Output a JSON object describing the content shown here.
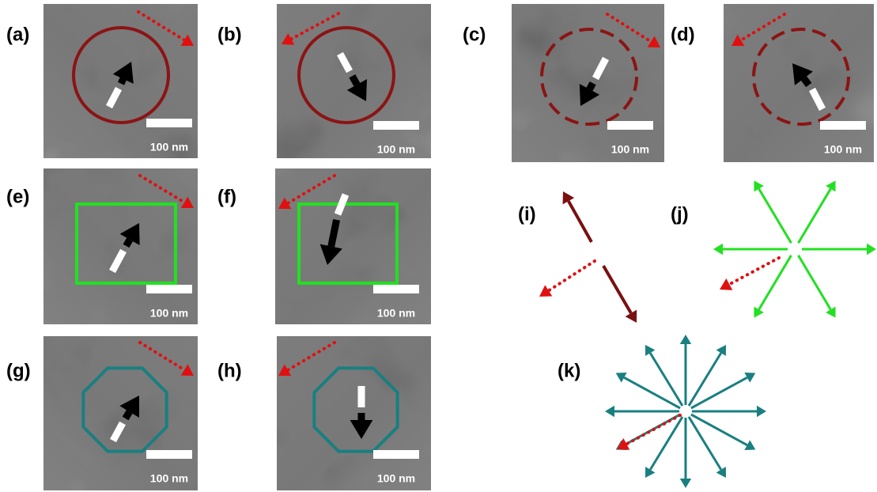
{
  "panels": [
    {
      "label": "(a)",
      "scale": "100 nm"
    },
    {
      "label": "(b)",
      "scale": "100 nm"
    },
    {
      "label": "(c)",
      "scale": "100 nm"
    },
    {
      "label": "(d)",
      "scale": "100 nm"
    },
    {
      "label": "(e)",
      "scale": "100 nm"
    },
    {
      "label": "(f)",
      "scale": "100 nm"
    },
    {
      "label": "(g)",
      "scale": "100 nm"
    },
    {
      "label": "(h)",
      "scale": "100 nm"
    }
  ],
  "diagrams": [
    {
      "label": "(i)"
    },
    {
      "label": "(j)"
    },
    {
      "label": "(k)"
    }
  ]
}
